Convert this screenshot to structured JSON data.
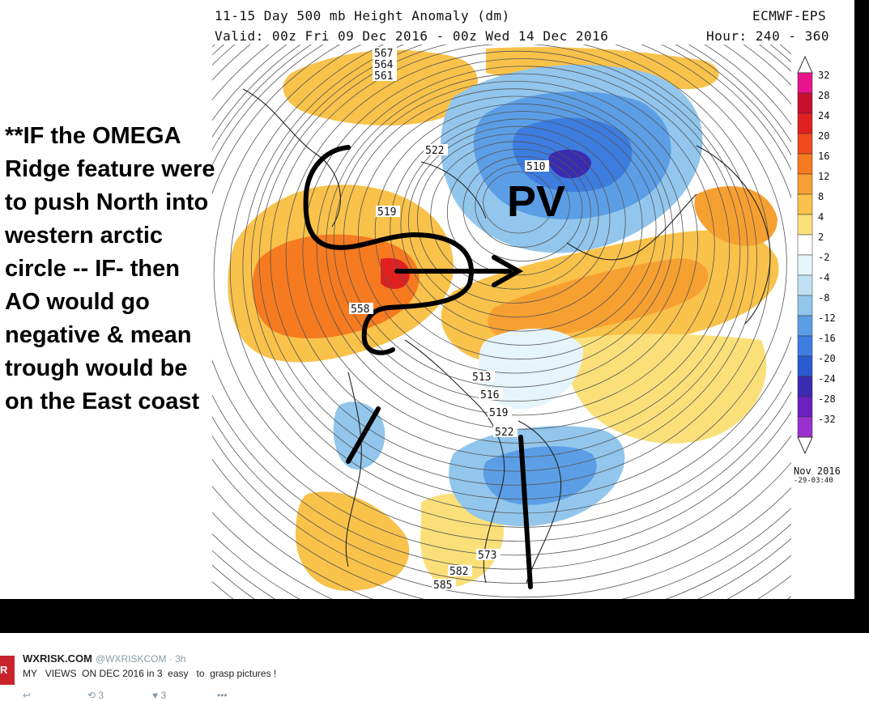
{
  "header": {
    "title": "11-15 Day 500 mb Height Anomaly (dm)",
    "valid": "Valid: 00z Fri 09 Dec 2016 - 00z Wed 14 Dec 2016",
    "model": "ECMWF-EPS",
    "hours": "Hour: 240 - 360"
  },
  "annotation": {
    "lines": [
      "**IF  the OMEGA",
      "Ridge feature were",
      "to push  North into",
      "western  arctic",
      "circle -- IF-  then",
      "AO would  go",
      "negative &  mean",
      "trough would be",
      "on the East coast"
    ],
    "pv_label": "PV"
  },
  "colorbar": {
    "labels": [
      "32",
      "28",
      "24",
      "20",
      "16",
      "12",
      "8",
      "4",
      "2",
      "-2",
      "-4",
      "-8",
      "-12",
      "-16",
      "-20",
      "-24",
      "-28",
      "-32"
    ],
    "colors": [
      "#e8148c",
      "#c8102e",
      "#e02020",
      "#f04a1e",
      "#f57a20",
      "#f7a032",
      "#f9c24a",
      "#fbe07a",
      "#ffffff",
      "#e6f4fb",
      "#bfe0f3",
      "#92c6ec",
      "#5b9ee6",
      "#3d7de0",
      "#2a5ad0",
      "#3a2bb0",
      "#6a1fc0",
      "#9b30d0"
    ]
  },
  "contour_labels": [
    "567",
    "564",
    "561",
    "522",
    "519",
    "510",
    "513",
    "516",
    "519",
    "522",
    "558",
    "582",
    "585",
    "573"
  ],
  "date_stamp": {
    "line1": "Nov 2016",
    "line2": "-29-03:40"
  },
  "tweet": {
    "name": "WXRISK.COM",
    "handle": "@WXRISKCOM · 3h",
    "text": "MY   VIEWS  ON DEC 2016 in 3  easy   to  grasp pictures !",
    "retweets": "3",
    "likes": "3",
    "avatar_text": "R"
  },
  "icons": [
    "reply-icon",
    "retweet-icon",
    "like-icon",
    "more-icon"
  ]
}
